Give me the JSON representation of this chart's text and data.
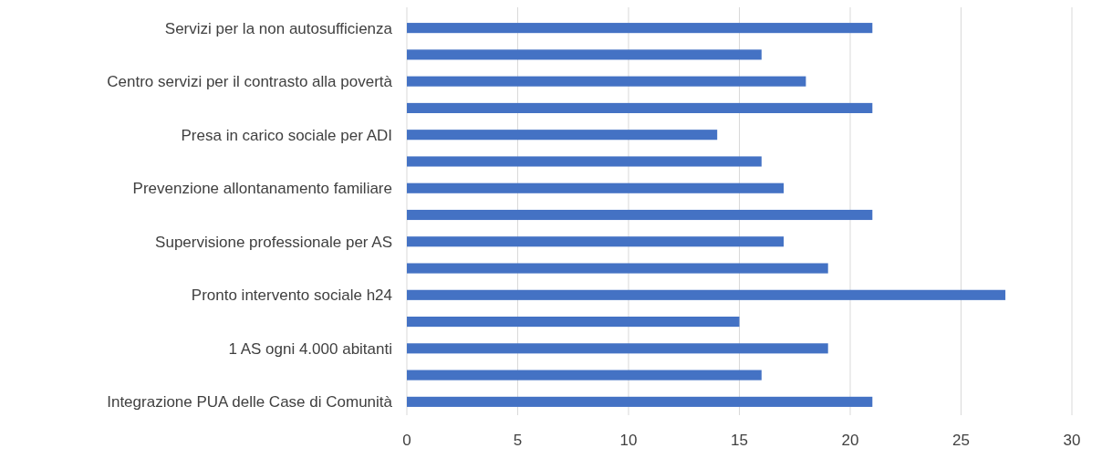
{
  "chart_data": {
    "type": "bar",
    "orientation": "horizontal",
    "categories": [
      "Servizi per la non autosufficienza",
      null,
      "Centro servizi per il contrasto alla povertà",
      null,
      "Presa in carico sociale per ADI",
      null,
      "Prevenzione allontanamento familiare",
      null,
      "Supervisione professionale per AS",
      null,
      "Pronto intervento sociale h24",
      null,
      "1 AS ogni 4.000 abitanti",
      null,
      "Integrazione PUA delle Case di Comunità"
    ],
    "values": [
      21,
      16,
      18,
      21,
      14,
      16,
      17,
      21,
      17,
      19,
      27,
      15,
      19,
      16,
      21
    ],
    "color": "#4472c4",
    "xlim": [
      0,
      30
    ],
    "xticks": [
      0,
      5,
      10,
      15,
      20,
      25,
      30
    ],
    "grid": "x"
  }
}
